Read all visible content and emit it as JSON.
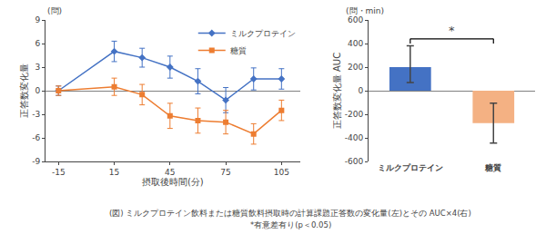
{
  "chart_data": [
    {
      "type": "line",
      "xlabel": "摂取後時間(分)",
      "ylabel": "正答数変化量",
      "annotations": [
        "(問)"
      ],
      "x": [
        -15,
        15,
        30,
        45,
        60,
        75,
        90,
        105
      ],
      "series": [
        {
          "name": "ミルクプロテイン",
          "color": "#4472C4",
          "marker": "diamond",
          "values": [
            0.0,
            5.0,
            4.2,
            3.0,
            1.2,
            -1.2,
            1.5,
            1.5
          ],
          "errors": [
            0.6,
            1.3,
            1.2,
            1.4,
            1.6,
            1.6,
            1.4,
            1.3
          ]
        },
        {
          "name": "糖質",
          "color": "#ED7D31",
          "marker": "square",
          "values": [
            0.0,
            0.5,
            -0.5,
            -3.2,
            -3.8,
            -4.0,
            -5.5,
            -2.5
          ],
          "errors": [
            0.6,
            1.1,
            1.3,
            1.6,
            1.6,
            1.5,
            1.3,
            1.3
          ]
        }
      ],
      "xlim": [
        -22,
        115
      ],
      "xticks": [
        -15,
        15,
        45,
        75,
        105
      ],
      "ylim": [
        -9,
        9
      ],
      "yticks": [
        -9,
        -6,
        -3,
        0,
        3,
        6,
        9
      ],
      "grid": false,
      "legend": "upper right"
    },
    {
      "type": "bar",
      "ylabel": "正答数変化量 AUC",
      "annotations": [
        "(問・min)"
      ],
      "categories": [
        "ミルクプロテイン",
        "糖質"
      ],
      "values": [
        200,
        -275
      ],
      "colors": [
        "#4472C4",
        "#F4B183"
      ],
      "error_low": [
        130,
        170
      ],
      "error_high": [
        180,
        170
      ],
      "ylim": [
        -600,
        600
      ],
      "yticks": [
        -600,
        -400,
        -200,
        0,
        200,
        400,
        600
      ],
      "grid": false,
      "bracket": {
        "categories": [
          "ミルクプロテイン",
          "糖質"
        ],
        "y": 440,
        "y_low": 400,
        "label": "*"
      }
    }
  ],
  "annotations": [
    "(図) ミルクプロテイン飲料または糖質飲料摂取時の計算課題正答数の変化量(左)とその AUC×4(右)",
    "*有意差有り(p＜0.05)"
  ]
}
